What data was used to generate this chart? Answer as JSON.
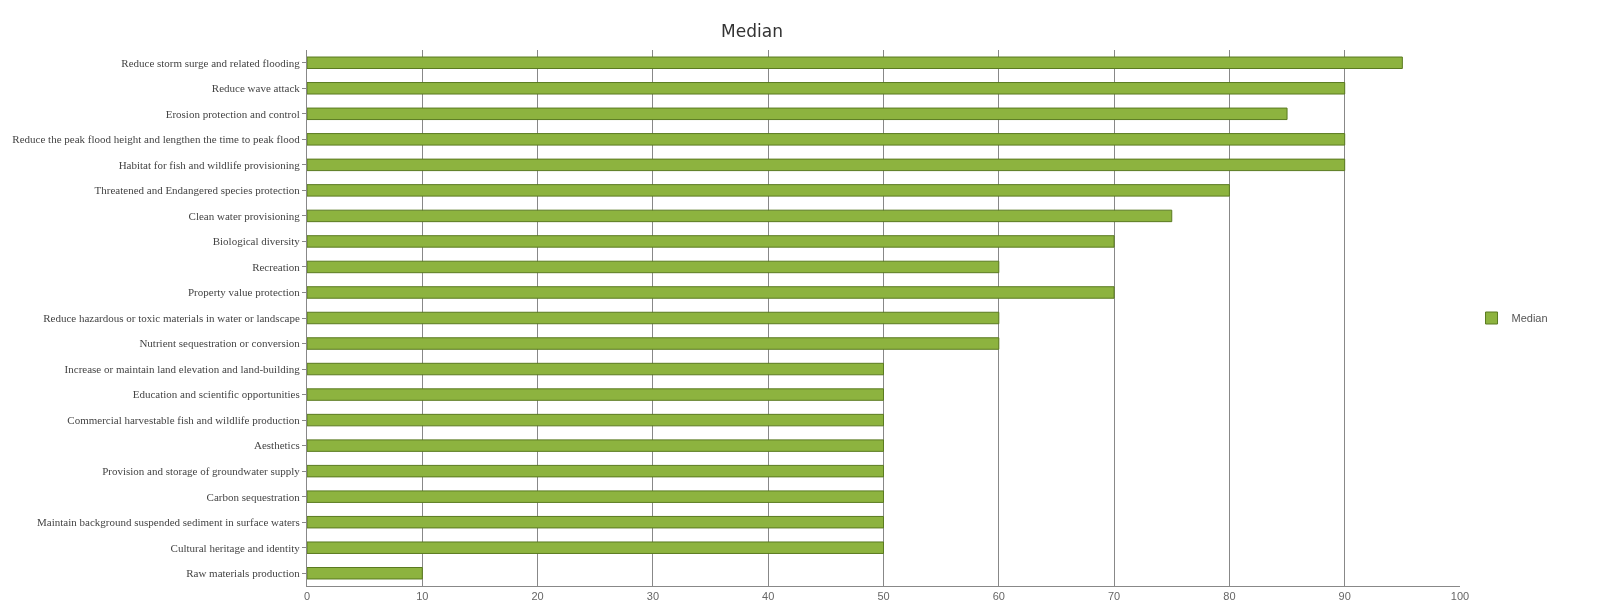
{
  "chart_data": {
    "type": "bar",
    "orientation": "horizontal",
    "title": "Median",
    "categories": [
      "Reduce storm surge and related flooding",
      "Reduce wave attack",
      "Erosion protection and control",
      "Reduce the peak flood height and lengthen the time to peak flood",
      "Habitat for fish and wildlife provisioning",
      "Threatened and Endangered species protection",
      "Clean water provisioning",
      "Biological diversity",
      "Recreation",
      "Property value protection",
      "Reduce hazardous or toxic materials in water or landscape",
      "Nutrient sequestration or conversion",
      "Increase or maintain land elevation and land-building",
      "Education and scientific opportunities",
      "Commercial harvestable fish and wildlife production",
      "Aesthetics",
      "Provision and storage of groundwater supply",
      "Carbon sequestration",
      "Maintain background suspended sediment in surface waters",
      "Cultural heritage and identity",
      "Raw materials production"
    ],
    "series": [
      {
        "name": "Median",
        "color": "#8db33f",
        "values": [
          95,
          90,
          85,
          90,
          90,
          80,
          75,
          70,
          60,
          70,
          60,
          60,
          50,
          50,
          50,
          50,
          50,
          50,
          50,
          50,
          10
        ]
      }
    ],
    "xlim": [
      0,
      100
    ],
    "xticks": [
      0,
      10,
      20,
      30,
      40,
      50,
      60,
      70,
      80,
      90,
      100
    ],
    "grid": "x",
    "legend": "right"
  }
}
